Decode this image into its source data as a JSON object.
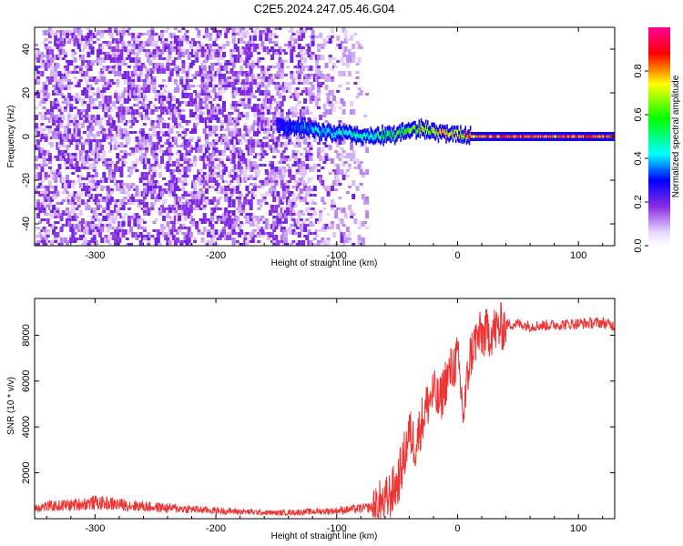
{
  "title": "C2E5.2024.247.05.46.G04",
  "chart_data": [
    {
      "type": "heatmap",
      "name": "spectrogram",
      "xlabel": "Height of straight line (km)",
      "ylabel": "Frequency (Hz)",
      "xlim": [
        -350,
        130
      ],
      "ylim": [
        -50,
        50
      ],
      "xticks": [
        -300,
        -200,
        -100,
        0,
        100
      ],
      "yticks": [
        -40,
        -20,
        0,
        20,
        40
      ],
      "colorbar": {
        "label": "Normalized spectral amplitude",
        "range": [
          0,
          1
        ],
        "ticks": [
          0.0,
          0.2,
          0.4,
          0.6,
          0.8
        ],
        "tick_labels": [
          "0.0",
          "0.2",
          "0.4",
          "0.6",
          "0.8"
        ]
      },
      "noise_region_x": [
        -350,
        -75
      ],
      "signal_line": {
        "x": [
          -150,
          -130,
          -110,
          -90,
          -70,
          -50,
          -40,
          -30,
          -20,
          -10,
          0,
          10,
          30,
          60,
          90,
          130
        ],
        "freq": [
          5,
          4,
          2,
          1,
          0,
          1,
          3,
          4,
          2,
          1,
          1,
          0,
          0,
          0,
          0,
          0
        ],
        "amplitude": [
          0.3,
          0.4,
          0.45,
          0.5,
          0.55,
          0.6,
          0.7,
          0.75,
          0.75,
          0.8,
          0.85,
          0.9,
          0.95,
          0.95,
          0.95,
          0.95
        ]
      }
    },
    {
      "type": "line",
      "name": "snr",
      "xlabel": "Height of straight line (km)",
      "ylabel": "SNR (10 * v/v)",
      "xlim": [
        -350,
        130
      ],
      "ylim": [
        0,
        9600
      ],
      "xticks": [
        -300,
        -200,
        -100,
        0,
        100
      ],
      "yticks": [
        2000,
        4000,
        6000,
        8000
      ],
      "color": "#ee3333",
      "series": [
        {
          "name": "SNR",
          "x": [
            -350,
            -320,
            -300,
            -250,
            -200,
            -150,
            -100,
            -80,
            -70,
            -60,
            -50,
            -45,
            -40,
            -35,
            -30,
            -25,
            -20,
            -15,
            -10,
            -5,
            0,
            5,
            10,
            15,
            20,
            30,
            40,
            50,
            60,
            80,
            100,
            120,
            130
          ],
          "y": [
            500,
            600,
            700,
            500,
            350,
            250,
            350,
            450,
            500,
            700,
            1500,
            2500,
            3800,
            3200,
            4200,
            5000,
            5500,
            5000,
            6000,
            6500,
            7000,
            4500,
            7000,
            7800,
            8000,
            8200,
            8450,
            8500,
            8400,
            8450,
            8500,
            8550,
            8400
          ]
        }
      ]
    }
  ]
}
